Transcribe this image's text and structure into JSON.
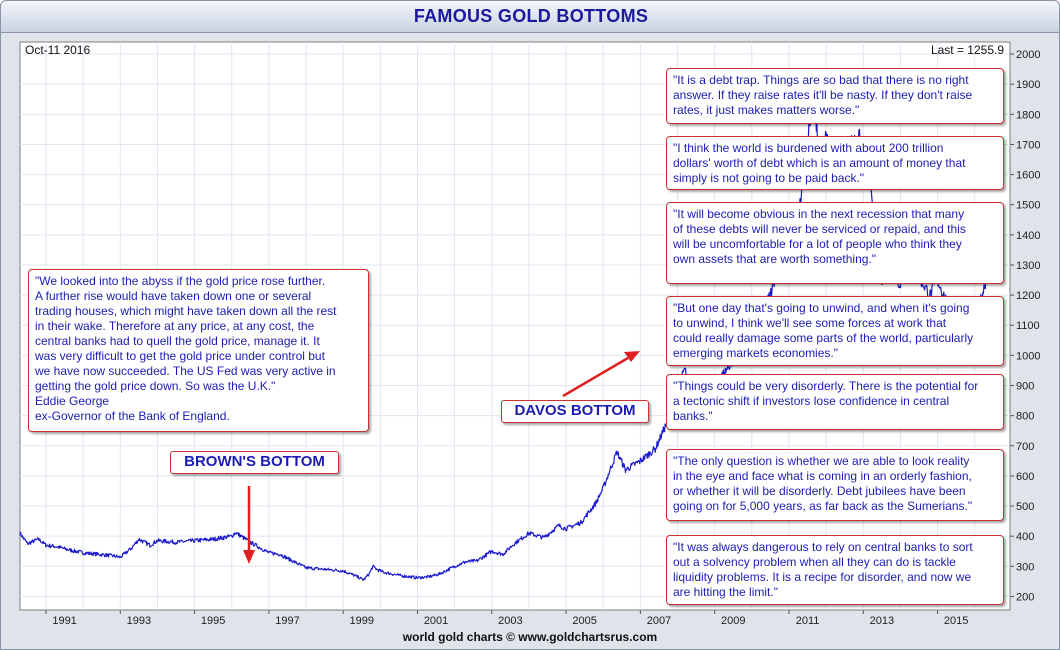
{
  "chart_data": {
    "type": "line",
    "title": "FAMOUS GOLD BOTTOMS",
    "date_label": "Oct-11  2016",
    "last_label": "Last = 1255.9",
    "credit": "world gold charts © www.goldchartsrus.com",
    "xlim": [
      1990.3,
      2016.95
    ],
    "ylim": [
      155,
      2040
    ],
    "x_ticks": [
      "1991",
      "1993",
      "1995",
      "1997",
      "1999",
      "2001",
      "2003",
      "2005",
      "2007",
      "2009",
      "2011",
      "2013",
      "2015"
    ],
    "y_ticks": [
      "200",
      "300",
      "400",
      "500",
      "600",
      "700",
      "800",
      "900",
      "1000",
      "1100",
      "1200",
      "1300",
      "1400",
      "1500",
      "1600",
      "1700",
      "1800",
      "1900",
      "2000"
    ],
    "line_color": "#1a1acc",
    "grid": true,
    "series": [
      {
        "x": [
          1990.3,
          1990.5,
          1990.8,
          1991.0,
          1991.3,
          1991.6,
          1992.0,
          1992.4,
          1992.8,
          1993.0,
          1993.3,
          1993.5,
          1993.8,
          1994.0,
          1994.5,
          1995.0,
          1995.5,
          1996.0,
          1996.1,
          1996.5,
          1997.0,
          1997.3,
          1997.6,
          1998.0,
          1998.5,
          1999.0,
          1999.3,
          1999.55,
          1999.7,
          1999.8,
          1999.9,
          2000.1,
          2000.5,
          2001.0,
          2001.3,
          2001.6,
          2002.0,
          2002.3,
          2002.6,
          2003.0,
          2003.3,
          2003.6,
          2004.0,
          2004.4,
          2004.8,
          2005.0,
          2005.4,
          2005.8,
          2006.0,
          2006.37,
          2006.6,
          2007.0,
          2007.4,
          2007.8,
          2008.0,
          2008.2,
          2008.5,
          2008.8,
          2009.0,
          2009.3,
          2009.6,
          2009.9,
          2010.2,
          2010.5,
          2010.8,
          2011.0,
          2011.3,
          2011.5,
          2011.67,
          2011.8,
          2012.0,
          2012.3,
          2012.6,
          2012.9,
          2013.0,
          2013.2,
          2013.3,
          2013.5,
          2013.8,
          2014.0,
          2014.2,
          2014.5,
          2014.8,
          2015.0,
          2015.2,
          2015.5,
          2015.8,
          2015.95,
          2016.1,
          2016.3,
          2016.5,
          2016.6,
          2016.78
        ],
        "y": [
          410,
          375,
          390,
          370,
          365,
          355,
          345,
          340,
          335,
          330,
          360,
          390,
          370,
          385,
          380,
          385,
          390,
          400,
          412,
          380,
          345,
          340,
          320,
          295,
          290,
          285,
          270,
          255,
          275,
          300,
          290,
          280,
          270,
          262,
          265,
          275,
          300,
          315,
          318,
          350,
          340,
          375,
          410,
          395,
          435,
          425,
          445,
          510,
          560,
          680,
          620,
          650,
          690,
          800,
          900,
          950,
          850,
          780,
          900,
          950,
          1000,
          1100,
          1120,
          1200,
          1350,
          1380,
          1500,
          1700,
          1900,
          1650,
          1720,
          1600,
          1700,
          1720,
          1650,
          1550,
          1400,
          1250,
          1300,
          1230,
          1290,
          1260,
          1200,
          1250,
          1190,
          1100,
          1080,
          1060,
          1150,
          1250,
          1350,
          1320,
          1256
        ]
      }
    ]
  },
  "quotes": [
    {
      "lines": [
        "\"It is a debt trap. Things are so bad that there is no right",
        "answer. If they raise rates it'll be nasty. If they don't raise",
        "rates, it just makes matters worse.\""
      ]
    },
    {
      "lines": [
        "\"I think the world is burdened with about 200 trillion",
        "dollars' worth of debt which is an amount of money that",
        "simply is not going to be paid back.\""
      ]
    },
    {
      "lines": [
        "\"It will become obvious in the next recession that many",
        "of these debts will never be serviced or repaid, and this",
        "will be uncomfortable for a lot of people who think they",
        "own assets that are worth something.\""
      ]
    },
    {
      "lines": [
        "\"But one day that's going to unwind, and when it's going",
        "to unwind, I think we'll see some forces at work that",
        "could really damage some parts of the world, particularly",
        "emerging markets economies.\""
      ]
    },
    {
      "lines": [
        "\"Things could be very disorderly. There is the potential for",
        "a tectonic shift if investors lose confidence in central",
        "banks.\""
      ]
    },
    {
      "lines": [
        "\"The only question is whether we are able to look reality",
        "in the eye and face what is coming in an orderly fashion,",
        "or whether it will be disorderly. Debt jubilees have been",
        "going on for 5,000 years, as far back as the Sumerians.\""
      ]
    },
    {
      "lines": [
        "\"It was always dangerous to rely on central banks to sort",
        "out a solvency problem when all they can do is tackle",
        "liquidity problems. It is a recipe for disorder, and now we",
        "are hitting the limit.\""
      ]
    }
  ],
  "left_quote": {
    "lines": [
      "\"We looked into the abyss if the gold price rose further.",
      "A further rise would have taken down one or several",
      "trading houses, which might have taken down all the rest",
      "in their wake. Therefore at any price, at any cost, the",
      "central banks had to quell the gold price, manage it. It",
      "was very difficult to get the gold price under control but",
      "we have now succeeded. The US Fed was very active in",
      "getting the gold price down. So was the U.K.\"",
      "Eddie George",
      "ex-Governor of the Bank of England."
    ]
  },
  "callouts": {
    "brown": "BROWN'S BOTTOM",
    "davos": "DAVOS BOTTOM"
  }
}
